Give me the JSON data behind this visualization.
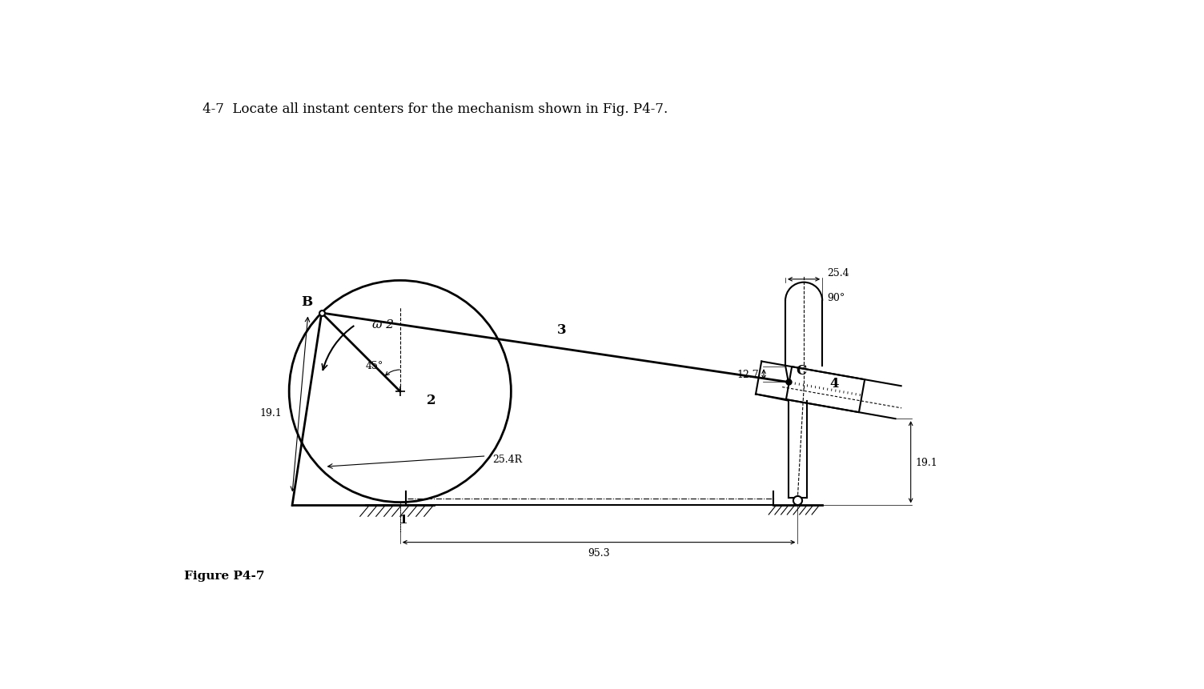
{
  "title_text": "4-7  Locate all instant centers for the mechanism shown in Fig. P4-7.",
  "figure_label": "Figure P4-7",
  "background_color": "#ffffff",
  "line_color": "#000000",
  "crank_label": "2",
  "pin_B_label": "B",
  "ground_pin_label": "1",
  "connecting_rod_label": "3",
  "slider_label": "4",
  "slider_pin_label": "C",
  "dim_25_4": "25.4",
  "dim_12_7": "12.7",
  "dim_19_1_left": "19.1",
  "dim_19_1_right": "19.1",
  "dim_25_4R": "25.4R",
  "dim_95_3": "95.3",
  "angle_label": "45°",
  "angle_90_label": "90°",
  "omega_label": "ω 2"
}
